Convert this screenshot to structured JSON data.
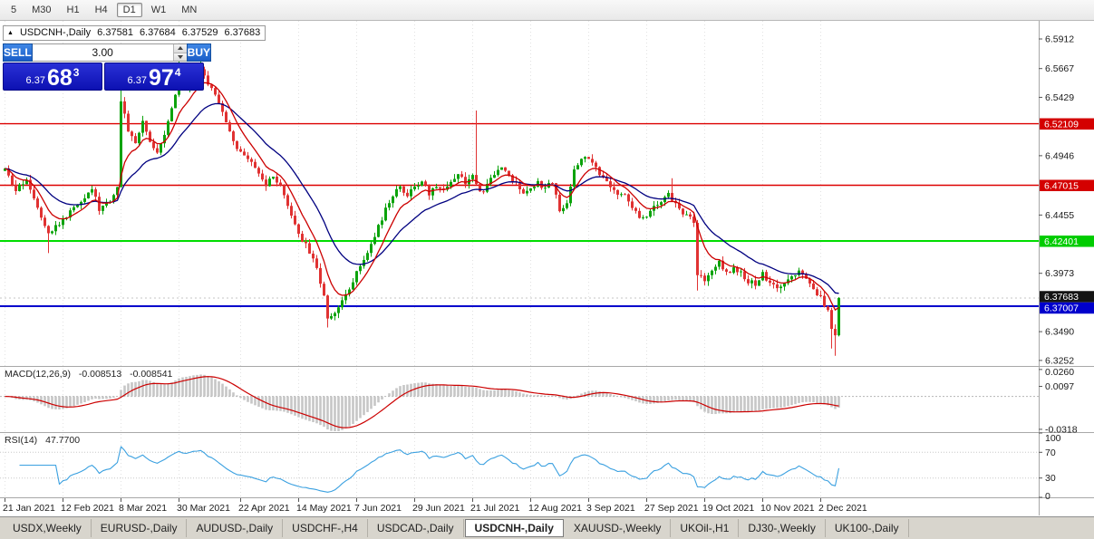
{
  "toolbar": {
    "timeframes": [
      {
        "label": "5",
        "active": false
      },
      {
        "label": "M30",
        "active": false
      },
      {
        "label": "H1",
        "active": false
      },
      {
        "label": "H4",
        "active": false
      },
      {
        "label": "D1",
        "active": true
      },
      {
        "label": "W1",
        "active": false
      },
      {
        "label": "MN",
        "active": false
      }
    ]
  },
  "info_line": {
    "symbol": "USDCNH-,Daily",
    "open": "6.37581",
    "high": "6.37684",
    "low": "6.37529",
    "close": "6.37683"
  },
  "trade_widget": {
    "sell_label": "SELL",
    "buy_label": "BUY",
    "volume": "3.00",
    "bid": {
      "prefix": "6.37",
      "big": "68",
      "sup": "3"
    },
    "ask": {
      "prefix": "6.37",
      "big": "97",
      "sup": "4"
    }
  },
  "icons": {
    "info_marker": "▲"
  },
  "tabs": {
    "items": [
      {
        "label": "USDX,Weekly",
        "active": false
      },
      {
        "label": "EURUSD-,Daily",
        "active": false
      },
      {
        "label": "AUDUSD-,Daily",
        "active": false
      },
      {
        "label": "USDCHF-,H4",
        "active": false
      },
      {
        "label": "USDCAD-,Daily",
        "active": false
      },
      {
        "label": "USDCNH-,Daily",
        "active": true
      },
      {
        "label": "XAUUSD-,Weekly",
        "active": false
      },
      {
        "label": "UKOil-,H1",
        "active": false
      },
      {
        "label": "DJ30-,Weekly",
        "active": false
      },
      {
        "label": "UK100-,Daily",
        "active": false
      }
    ]
  },
  "colors": {
    "candle_up": "#0ca30c",
    "candle_down": "#e03232",
    "ma_fast": "#cc0000",
    "ma_slow": "#000080",
    "macd_hist": "#c6c6c6",
    "macd_signal": "#cc0000",
    "rsi_line": "#3aa0e0",
    "grid": "#e2e2e2",
    "axis_text": "#1a1a1a"
  },
  "chart_data": {
    "type": "candlestick",
    "symbol": "USDCNH-",
    "timeframe": "Daily",
    "ylim": [
      6.3206,
      6.6062
    ],
    "candle_count": 231,
    "last_close": 6.37683,
    "price_ticks": [
      "6.5912",
      "6.5667",
      "6.5429",
      "6.4946",
      "6.4455",
      "6.3973",
      "6.3490",
      "6.3252"
    ],
    "badges": [
      {
        "value": "6.52109",
        "price": 6.52109,
        "bg": "#d40000",
        "fg": "#ffffff"
      },
      {
        "value": "6.47015",
        "price": 6.47015,
        "bg": "#d40000",
        "fg": "#ffffff"
      },
      {
        "value": "6.42401",
        "price": 6.42401,
        "bg": "#00cc00",
        "fg": "#ffffff"
      },
      {
        "value": "6.37683",
        "price": 6.37683,
        "bg": "#141414",
        "fg": "#ffffff"
      },
      {
        "value": "6.37007",
        "price": 6.37007,
        "bg": "#0000cc",
        "fg": "#ffffff"
      }
    ],
    "levels": [
      {
        "price": 6.52109,
        "color": "#dd0000",
        "width": 1.4
      },
      {
        "price": 6.47015,
        "color": "#dd0000",
        "width": 1.4
      },
      {
        "price": 6.42401,
        "color": "#00dd00",
        "width": 2
      },
      {
        "price": 6.37007,
        "color": "#0000cc",
        "width": 2
      }
    ],
    "date_labels": [
      {
        "label": "21 Jan 2021",
        "index": 0
      },
      {
        "label": "12 Feb 2021",
        "index": 16
      },
      {
        "label": "8 Mar 2021",
        "index": 32
      },
      {
        "label": "30 Mar 2021",
        "index": 48
      },
      {
        "label": "22 Apr 2021",
        "index": 65
      },
      {
        "label": "14 May 2021",
        "index": 81
      },
      {
        "label": "7 Jun 2021",
        "index": 97
      },
      {
        "label": "29 Jun 2021",
        "index": 113
      },
      {
        "label": "21 Jul 2021",
        "index": 129
      },
      {
        "label": "12 Aug 2021",
        "index": 145
      },
      {
        "label": "3 Sep 2021",
        "index": 161
      },
      {
        "label": "27 Sep 2021",
        "index": 177
      },
      {
        "label": "19 Oct 2021",
        "index": 193
      },
      {
        "label": "10 Nov 2021",
        "index": 209
      },
      {
        "label": "2 Dec 2021",
        "index": 225
      }
    ],
    "close_waypoints": [
      [
        0,
        6.482
      ],
      [
        3,
        6.465
      ],
      [
        6,
        6.476
      ],
      [
        9,
        6.452
      ],
      [
        12,
        6.432
      ],
      [
        15,
        6.438
      ],
      [
        18,
        6.448
      ],
      [
        21,
        6.458
      ],
      [
        24,
        6.468
      ],
      [
        26,
        6.45
      ],
      [
        28,
        6.455
      ],
      [
        30,
        6.462
      ],
      [
        31,
        6.47
      ],
      [
        32,
        6.54
      ],
      [
        34,
        6.516
      ],
      [
        36,
        6.506
      ],
      [
        38,
        6.522
      ],
      [
        40,
        6.506
      ],
      [
        42,
        6.498
      ],
      [
        44,
        6.514
      ],
      [
        46,
        6.534
      ],
      [
        48,
        6.556
      ],
      [
        50,
        6.548
      ],
      [
        52,
        6.56
      ],
      [
        54,
        6.566
      ],
      [
        56,
        6.554
      ],
      [
        58,
        6.545
      ],
      [
        60,
        6.531
      ],
      [
        62,
        6.516
      ],
      [
        64,
        6.501
      ],
      [
        66,
        6.493
      ],
      [
        68,
        6.488
      ],
      [
        70,
        6.479
      ],
      [
        72,
        6.47
      ],
      [
        74,
        6.477
      ],
      [
        76,
        6.468
      ],
      [
        78,
        6.452
      ],
      [
        80,
        6.437
      ],
      [
        82,
        6.425
      ],
      [
        84,
        6.415
      ],
      [
        86,
        6.4
      ],
      [
        88,
        6.38
      ],
      [
        89,
        6.36
      ],
      [
        91,
        6.366
      ],
      [
        93,
        6.373
      ],
      [
        95,
        6.386
      ],
      [
        97,
        6.398
      ],
      [
        99,
        6.408
      ],
      [
        101,
        6.422
      ],
      [
        103,
        6.436
      ],
      [
        105,
        6.45
      ],
      [
        107,
        6.46
      ],
      [
        109,
        6.47
      ],
      [
        111,
        6.462
      ],
      [
        113,
        6.468
      ],
      [
        115,
        6.474
      ],
      [
        117,
        6.463
      ],
      [
        119,
        6.47
      ],
      [
        121,
        6.466
      ],
      [
        123,
        6.474
      ],
      [
        125,
        6.48
      ],
      [
        127,
        6.473
      ],
      [
        129,
        6.478
      ],
      [
        131,
        6.463
      ],
      [
        133,
        6.47
      ],
      [
        135,
        6.479
      ],
      [
        137,
        6.486
      ],
      [
        139,
        6.479
      ],
      [
        141,
        6.471
      ],
      [
        143,
        6.462
      ],
      [
        145,
        6.468
      ],
      [
        147,
        6.474
      ],
      [
        149,
        6.466
      ],
      [
        151,
        6.474
      ],
      [
        153,
        6.449
      ],
      [
        155,
        6.456
      ],
      [
        157,
        6.484
      ],
      [
        159,
        6.491
      ],
      [
        161,
        6.494
      ],
      [
        163,
        6.484
      ],
      [
        165,
        6.475
      ],
      [
        167,
        6.468
      ],
      [
        169,
        6.461
      ],
      [
        171,
        6.464
      ],
      [
        173,
        6.452
      ],
      [
        175,
        6.443
      ],
      [
        177,
        6.446
      ],
      [
        179,
        6.451
      ],
      [
        181,
        6.457
      ],
      [
        183,
        6.462
      ],
      [
        185,
        6.455
      ],
      [
        187,
        6.448
      ],
      [
        189,
        6.442
      ],
      [
        190,
        6.438
      ],
      [
        191,
        6.397
      ],
      [
        193,
        6.391
      ],
      [
        195,
        6.401
      ],
      [
        197,
        6.407
      ],
      [
        199,
        6.398
      ],
      [
        201,
        6.401
      ],
      [
        203,
        6.397
      ],
      [
        205,
        6.391
      ],
      [
        207,
        6.389
      ],
      [
        209,
        6.397
      ],
      [
        211,
        6.388
      ],
      [
        213,
        6.384
      ],
      [
        215,
        6.388
      ],
      [
        217,
        6.394
      ],
      [
        219,
        6.399
      ],
      [
        221,
        6.391
      ],
      [
        223,
        6.385
      ],
      [
        225,
        6.377
      ],
      [
        227,
        6.367
      ],
      [
        228,
        6.35
      ],
      [
        229,
        6.346
      ],
      [
        230,
        6.37683
      ]
    ],
    "spikes": [
      {
        "i": 12,
        "low": 6.414
      },
      {
        "i": 32,
        "high": 6.5655
      },
      {
        "i": 48,
        "high": 6.5725
      },
      {
        "i": 54,
        "high": 6.579
      },
      {
        "i": 89,
        "low": 6.3525
      },
      {
        "i": 130,
        "high": 6.532
      },
      {
        "i": 184,
        "high": 6.476
      },
      {
        "i": 191,
        "low": 6.383
      },
      {
        "i": 228,
        "low": 6.335
      },
      {
        "i": 229,
        "low": 6.329
      }
    ],
    "indicators": {
      "ma_fast_period": 8,
      "ma_slow_period": 21,
      "macd": {
        "label": "MACD(12,26,9)",
        "value1": "-0.008513",
        "value2": "-0.008541",
        "params": [
          12,
          26,
          9
        ],
        "axis_ticks": [
          0.026,
          0.0097,
          -0.0318
        ],
        "ylim": [
          -0.0345,
          0.0285
        ]
      },
      "rsi": {
        "label": "RSI(14)",
        "value": "47.7700",
        "period": 14,
        "axis_ticks": [
          100,
          70,
          30,
          0
        ],
        "levels": [
          70,
          30
        ],
        "ylim": [
          0,
          100
        ]
      }
    }
  }
}
